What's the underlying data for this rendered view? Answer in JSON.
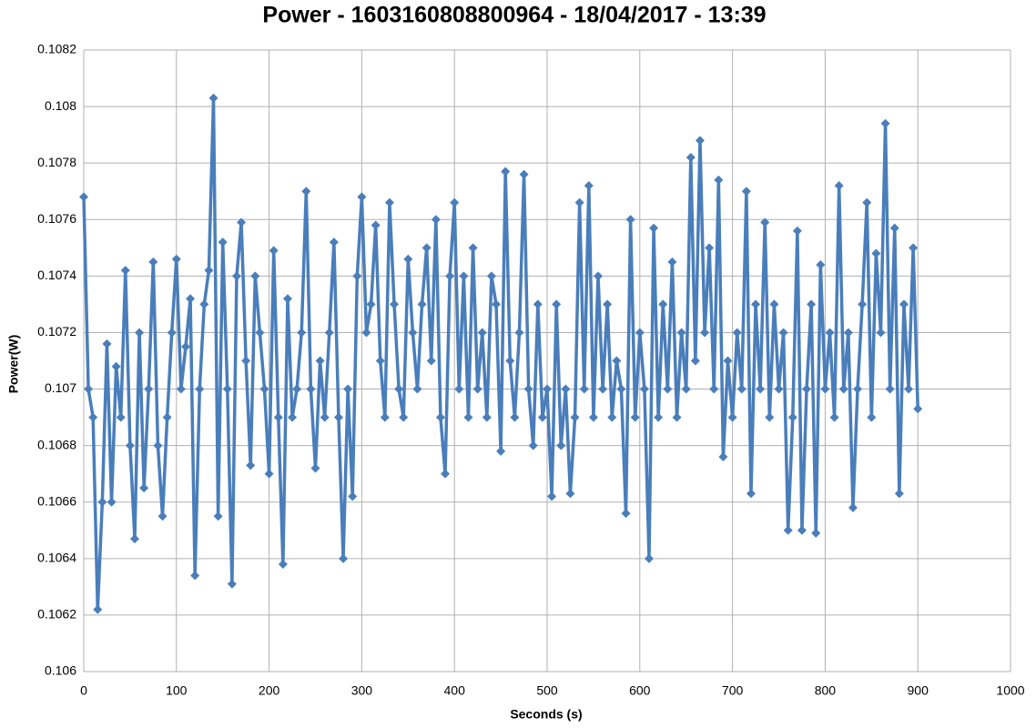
{
  "chart_data": {
    "type": "line",
    "title": "Power - 1603160808800964 - 18/04/2017 - 13:39",
    "xlabel": "Seconds (s)",
    "ylabel": "Power(W)",
    "color": "#4a7ebb",
    "x": [
      0,
      5,
      10,
      15,
      20,
      25,
      30,
      35,
      40,
      45,
      50,
      55,
      60,
      65,
      70,
      75,
      80,
      85,
      90,
      95,
      100,
      105,
      110,
      115,
      120,
      125,
      130,
      135,
      140,
      145,
      150,
      155,
      160,
      165,
      170,
      175,
      180,
      185,
      190,
      195,
      200,
      205,
      210,
      215,
      220,
      225,
      230,
      235,
      240,
      245,
      250,
      255,
      260,
      265,
      270,
      275,
      280,
      285,
      290,
      295,
      300,
      305,
      310,
      315,
      320,
      325,
      330,
      335,
      340,
      345,
      350,
      355,
      360,
      365,
      370,
      375,
      380,
      385,
      390,
      395,
      400,
      405,
      410,
      415,
      420,
      425,
      430,
      435,
      440,
      445,
      450,
      455,
      460,
      465,
      470,
      475,
      480,
      485,
      490,
      495,
      500,
      505,
      510,
      515,
      520,
      525,
      530,
      535,
      540,
      545,
      550,
      555,
      560,
      565,
      570,
      575,
      580,
      585,
      590,
      595,
      600,
      605,
      610,
      615,
      620,
      625,
      630,
      635,
      640,
      645,
      650,
      655,
      660,
      665,
      670,
      675,
      680,
      685,
      690,
      695,
      700,
      705,
      710,
      715,
      720,
      725,
      730,
      735,
      740,
      745,
      750,
      755,
      760,
      765,
      770,
      775,
      780,
      785,
      790,
      795,
      800,
      805,
      810,
      815,
      820,
      825,
      830,
      835,
      840,
      845,
      850,
      855,
      860,
      865,
      870,
      875,
      880,
      885,
      890,
      895,
      900
    ],
    "values": [
      0.10768,
      0.107,
      0.1069,
      0.10622,
      0.1066,
      0.10716,
      0.1066,
      0.10708,
      0.1069,
      0.10742,
      0.1068,
      0.10647,
      0.1072,
      0.10665,
      0.107,
      0.10745,
      0.1068,
      0.10655,
      0.1069,
      0.1072,
      0.10746,
      0.107,
      0.10715,
      0.10732,
      0.10634,
      0.107,
      0.1073,
      0.10742,
      0.10803,
      0.10655,
      0.10752,
      0.107,
      0.10631,
      0.1074,
      0.10759,
      0.1071,
      0.10673,
      0.1074,
      0.1072,
      0.107,
      0.1067,
      0.10749,
      0.1069,
      0.10638,
      0.10732,
      0.1069,
      0.107,
      0.1072,
      0.1077,
      0.107,
      0.10672,
      0.1071,
      0.1069,
      0.1072,
      0.10752,
      0.1069,
      0.1064,
      0.107,
      0.10662,
      0.1074,
      0.10768,
      0.1072,
      0.1073,
      0.10758,
      0.1071,
      0.1069,
      0.10766,
      0.1073,
      0.107,
      0.1069,
      0.10746,
      0.1072,
      0.107,
      0.1073,
      0.1075,
      0.1071,
      0.1076,
      0.1069,
      0.1067,
      0.1074,
      0.10766,
      0.107,
      0.1074,
      0.1069,
      0.1075,
      0.107,
      0.1072,
      0.1069,
      0.1074,
      0.1073,
      0.10678,
      0.10777,
      0.1071,
      0.1069,
      0.1072,
      0.10776,
      0.107,
      0.1068,
      0.1073,
      0.1069,
      0.107,
      0.10662,
      0.1073,
      0.1068,
      0.107,
      0.10663,
      0.1069,
      0.10766,
      0.107,
      0.10772,
      0.1069,
      0.1074,
      0.107,
      0.1073,
      0.1069,
      0.1071,
      0.107,
      0.10656,
      0.1076,
      0.1069,
      0.1072,
      0.107,
      0.1064,
      0.10757,
      0.1069,
      0.1073,
      0.107,
      0.10745,
      0.1069,
      0.1072,
      0.107,
      0.10782,
      0.1071,
      0.10788,
      0.1072,
      0.1075,
      0.107,
      0.10774,
      0.10676,
      0.1071,
      0.1069,
      0.1072,
      0.107,
      0.1077,
      0.10663,
      0.1073,
      0.107,
      0.10759,
      0.1069,
      0.1073,
      0.107,
      0.1072,
      0.1065,
      0.1069,
      0.10756,
      0.1065,
      0.107,
      0.1073,
      0.10649,
      0.10744,
      0.107,
      0.1072,
      0.1069,
      0.10772,
      0.107,
      0.1072,
      0.10658,
      0.107,
      0.1073,
      0.10766,
      0.1069,
      0.10748,
      0.1072,
      0.10794,
      0.107,
      0.10757,
      0.10663,
      0.1073,
      0.107,
      0.1075,
      0.10693
    ],
    "xlim": [
      0,
      1000
    ],
    "xticks": [
      0,
      100,
      200,
      300,
      400,
      500,
      600,
      700,
      800,
      900,
      1000
    ],
    "ylim": [
      0.106,
      0.1082
    ],
    "yticks": [
      0.106,
      0.1062,
      0.1064,
      0.1066,
      0.1068,
      0.107,
      0.1072,
      0.1074,
      0.1076,
      0.1078,
      0.108,
      0.1082
    ],
    "grid": true
  }
}
